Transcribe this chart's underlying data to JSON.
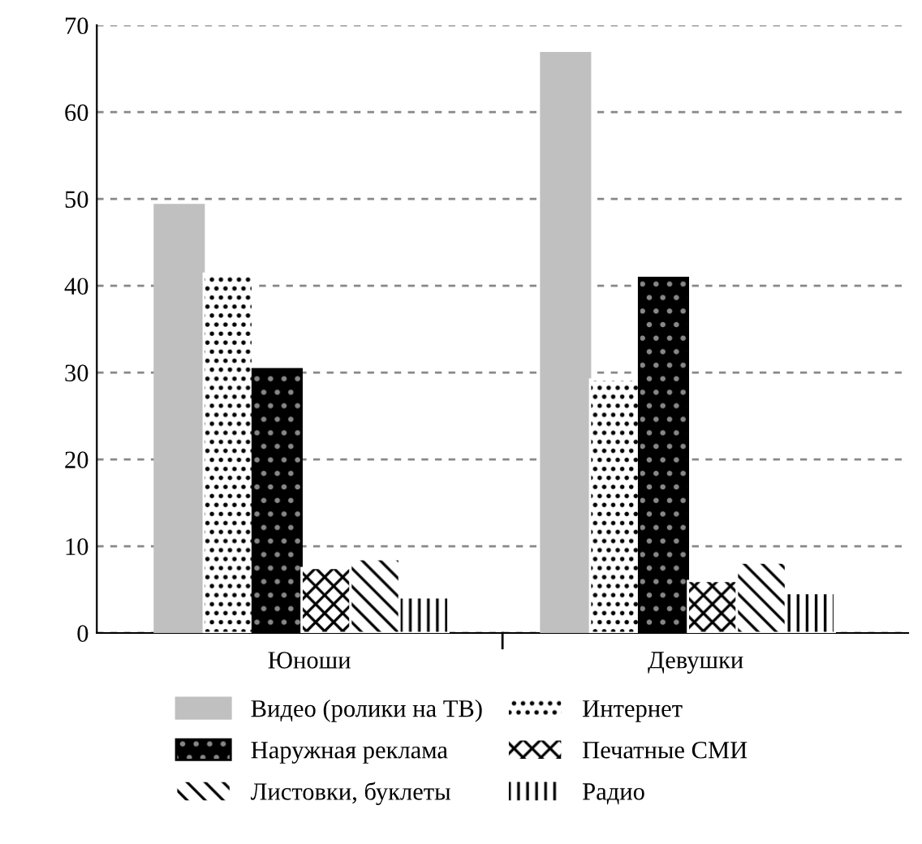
{
  "chart_data": {
    "type": "bar",
    "categories": [
      "Юноши",
      "Девушки"
    ],
    "series": [
      {
        "name": "Видео (ролики на ТВ)",
        "color": "#c0c0c0",
        "values": [
          49.3,
          66.8
        ]
      },
      {
        "name": "Интернет",
        "color": "#ffffff",
        "values": [
          41.4,
          29.2
        ]
      },
      {
        "name": "Наружная реклама",
        "color": "#000000",
        "values": [
          30.4,
          40.9
        ]
      },
      {
        "name": "Печатные СМИ",
        "color": "#ffffff",
        "values": [
          7.5,
          6.0
        ]
      },
      {
        "name": "Листовки, буклеты",
        "color": "#ffffff",
        "values": [
          8.5,
          8.1
        ]
      },
      {
        "name": "Радио",
        "color": "#ffffff",
        "values": [
          4.1,
          4.6
        ]
      }
    ],
    "ylim": [
      0,
      70
    ],
    "yticks": [
      0,
      10,
      20,
      30,
      40,
      50,
      60,
      70
    ],
    "grid": "y",
    "legend": "bottom"
  }
}
